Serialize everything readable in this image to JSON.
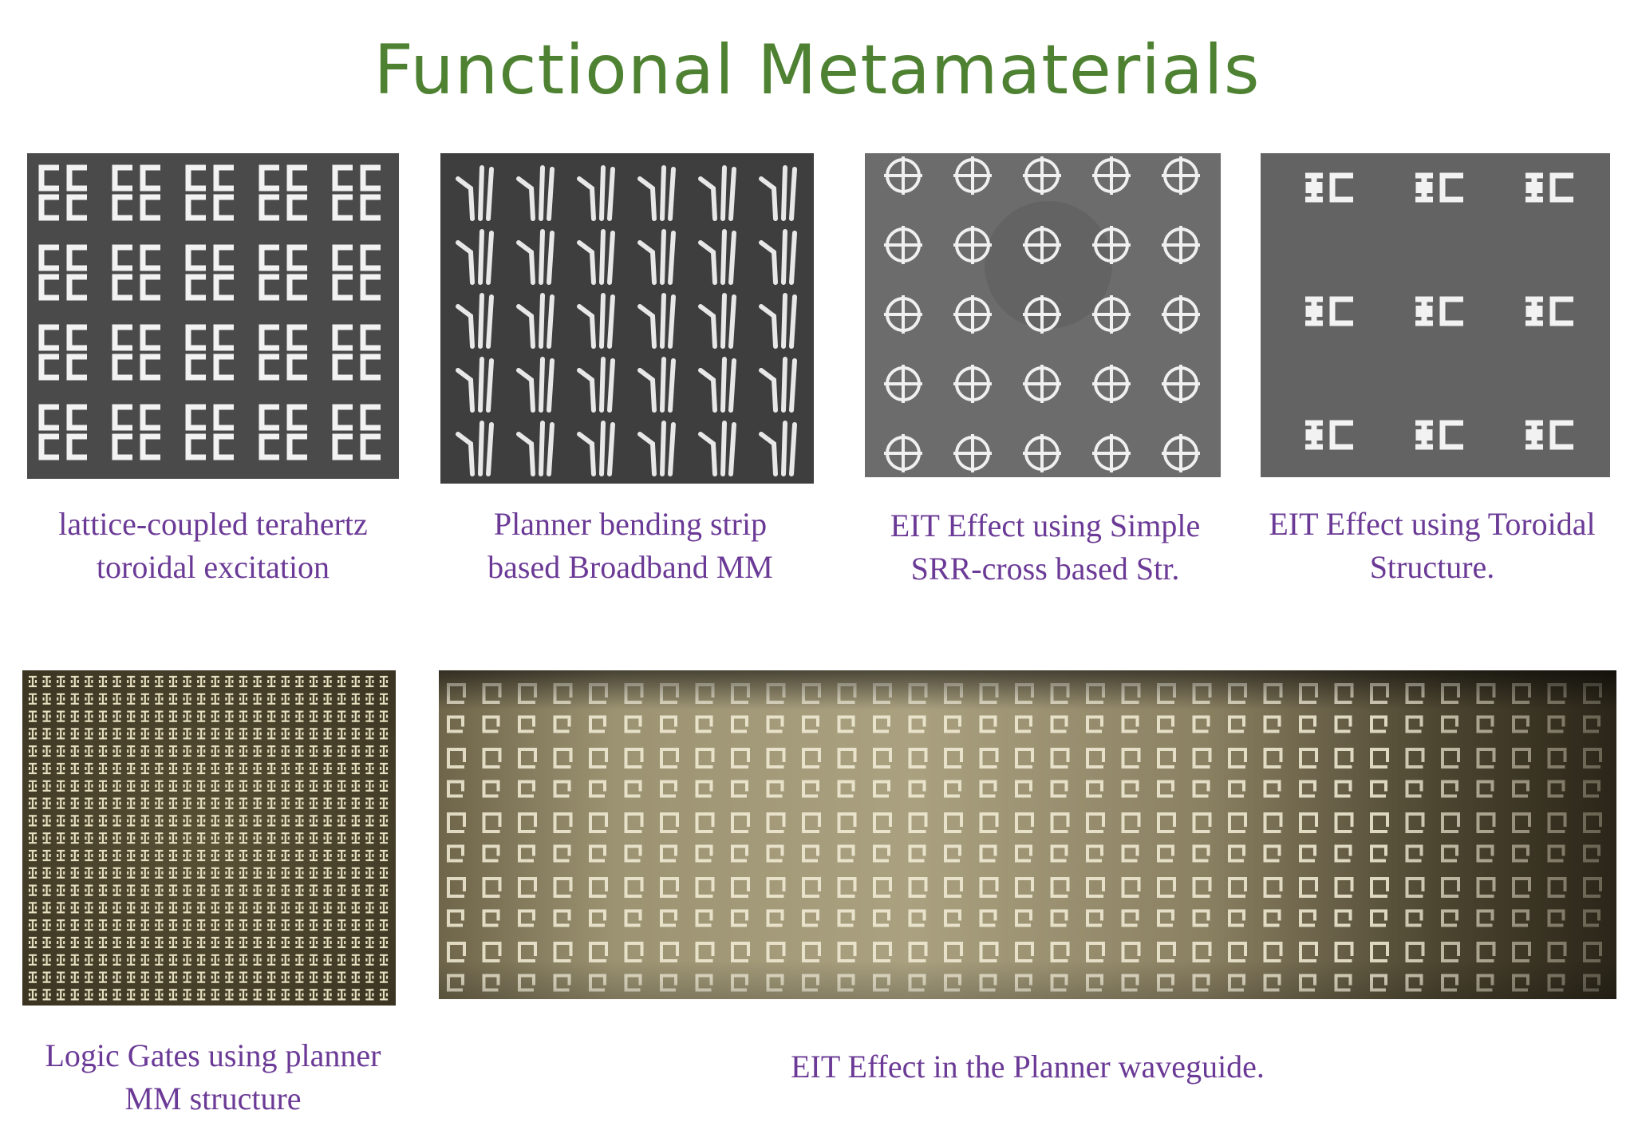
{
  "title": "Functional Metamaterials",
  "panels": [
    {
      "caption": [
        "lattice-coupled terahertz",
        "toroidal excitation"
      ]
    },
    {
      "caption": [
        "Planner bending strip",
        "based Broadband MM"
      ]
    },
    {
      "caption": [
        "EIT Effect using Simple",
        "SRR-cross based Str."
      ]
    },
    {
      "caption": [
        "EIT Effect using Toroidal",
        "Structure."
      ]
    },
    {
      "caption": [
        "Logic Gates using planner",
        "MM structure"
      ]
    },
    {
      "caption": [
        "EIT Effect in the Planner waveguide."
      ]
    }
  ],
  "colors": {
    "title": "#4e8232",
    "caption": "#6b3a96"
  }
}
